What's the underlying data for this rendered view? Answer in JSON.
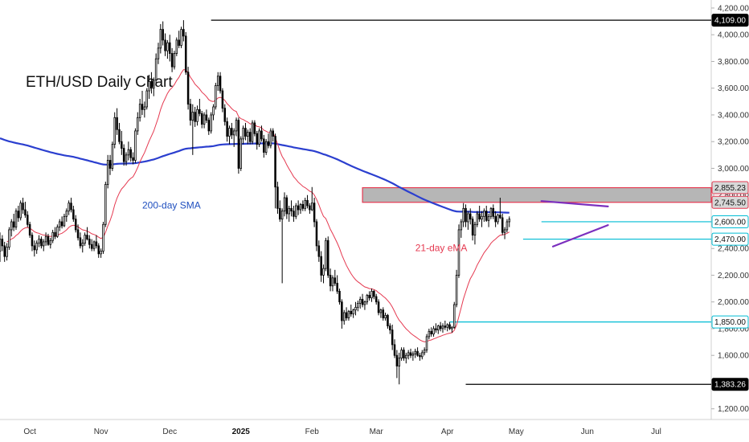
{
  "chart_data": {
    "type": "candlestick",
    "title": "ETH/USD Daily Chart",
    "y_axis": {
      "min": 1120,
      "max": 4260,
      "ticks": [
        "1,200.00",
        "1,400.00",
        "1,600.00",
        "1,800.00",
        "2,000.00",
        "2,200.00",
        "2,400.00",
        "2,600.00",
        "2,800.00",
        "3,000.00",
        "3,200.00",
        "3,400.00",
        "3,600.00",
        "3,800.00",
        "4,000.00",
        "4,200.00"
      ],
      "tick_values": [
        1200,
        1400,
        1600,
        1800,
        2000,
        2200,
        2400,
        2600,
        2800,
        3000,
        3200,
        3400,
        3600,
        3800,
        4000,
        4200
      ]
    },
    "x_axis": {
      "ticks": [
        {
          "label": "Oct",
          "day": 13
        },
        {
          "label": "Nov",
          "day": 44
        },
        {
          "label": "Dec",
          "day": 74
        },
        {
          "label": "2025",
          "day": 105,
          "bold": true
        },
        {
          "label": "Feb",
          "day": 136
        },
        {
          "label": "Mar",
          "day": 164
        },
        {
          "label": "Apr",
          "day": 195
        },
        {
          "label": "May",
          "day": 225
        },
        {
          "label": "Jun",
          "day": 256
        },
        {
          "label": "Jul",
          "day": 286
        }
      ],
      "day_range": [
        0,
        310
      ]
    },
    "price_badges": [
      {
        "label": "4,109.00",
        "value": 4109,
        "style": "dark"
      },
      {
        "label": "2,855.23",
        "value": 2855.23,
        "style": "red"
      },
      {
        "label": "2,745.50",
        "value": 2745.5,
        "style": "red"
      },
      {
        "label": "2,600.00",
        "value": 2600,
        "style": "light"
      },
      {
        "label": "2,470.00",
        "value": 2470,
        "style": "light"
      },
      {
        "label": "1,850.00",
        "value": 1850,
        "style": "light"
      },
      {
        "label": "1,383.26",
        "value": 1383.26,
        "style": "dark"
      }
    ],
    "levels": [
      {
        "value": 4109,
        "from_day": 92,
        "color": "#000000"
      },
      {
        "value": 1383.26,
        "from_day": 203,
        "color": "#000000"
      },
      {
        "value": 2600,
        "from_day": 236,
        "color": "#00bcd4"
      },
      {
        "value": 2470,
        "from_day": 228,
        "color": "#00bcd4"
      },
      {
        "value": 1850,
        "from_day": 196,
        "color": "#00bcd4"
      }
    ],
    "zone": {
      "low": 2745.5,
      "high": 2855.23,
      "from_day": 158
    },
    "trendlines": [
      {
        "from": [
          236,
          2755
        ],
        "to": [
          265,
          2715
        ],
        "color": "#7b2fbe"
      },
      {
        "from": [
          241,
          2415
        ],
        "to": [
          265,
          2575
        ],
        "color": "#7b2fbe"
      }
    ],
    "annotations": [
      {
        "text": "200-day SMA",
        "day": 62,
        "value": 2700,
        "color": "#1f4fbf"
      },
      {
        "text": "21-day eMA",
        "day": 181,
        "value": 2380,
        "color": "#e53950"
      }
    ],
    "candles": [
      [
        2380,
        2520,
        2300,
        2470
      ],
      [
        2470,
        2500,
        2380,
        2420
      ],
      [
        2420,
        2450,
        2300,
        2340
      ],
      [
        2340,
        2440,
        2310,
        2410
      ],
      [
        2410,
        2560,
        2390,
        2540
      ],
      [
        2540,
        2620,
        2490,
        2600
      ],
      [
        2600,
        2660,
        2530,
        2560
      ],
      [
        2560,
        2700,
        2540,
        2680
      ],
      [
        2680,
        2720,
        2600,
        2630
      ],
      [
        2630,
        2760,
        2610,
        2740
      ],
      [
        2740,
        2780,
        2660,
        2690
      ],
      [
        2690,
        2750,
        2630,
        2650
      ],
      [
        2650,
        2680,
        2560,
        2580
      ],
      [
        2580,
        2600,
        2480,
        2500
      ],
      [
        2500,
        2520,
        2380,
        2420
      ],
      [
        2420,
        2460,
        2340,
        2390
      ],
      [
        2390,
        2460,
        2360,
        2440
      ],
      [
        2440,
        2500,
        2410,
        2470
      ],
      [
        2470,
        2490,
        2400,
        2420
      ],
      [
        2420,
        2470,
        2380,
        2450
      ],
      [
        2450,
        2520,
        2420,
        2490
      ],
      [
        2490,
        2510,
        2420,
        2430
      ],
      [
        2430,
        2480,
        2400,
        2460
      ],
      [
        2460,
        2540,
        2440,
        2520
      ],
      [
        2520,
        2560,
        2470,
        2490
      ],
      [
        2490,
        2580,
        2480,
        2560
      ],
      [
        2560,
        2620,
        2530,
        2600
      ],
      [
        2600,
        2640,
        2550,
        2570
      ],
      [
        2570,
        2660,
        2560,
        2640
      ],
      [
        2640,
        2700,
        2600,
        2680
      ],
      [
        2680,
        2760,
        2650,
        2740
      ],
      [
        2740,
        2780,
        2670,
        2690
      ],
      [
        2690,
        2720,
        2600,
        2620
      ],
      [
        2620,
        2650,
        2520,
        2540
      ],
      [
        2540,
        2580,
        2460,
        2480
      ],
      [
        2480,
        2520,
        2400,
        2420
      ],
      [
        2420,
        2470,
        2370,
        2440
      ],
      [
        2440,
        2520,
        2420,
        2500
      ],
      [
        2500,
        2560,
        2460,
        2470
      ],
      [
        2470,
        2500,
        2400,
        2430
      ],
      [
        2430,
        2470,
        2380,
        2400
      ],
      [
        2400,
        2460,
        2380,
        2450
      ],
      [
        2450,
        2500,
        2400,
        2420
      ],
      [
        2420,
        2440,
        2330,
        2360
      ],
      [
        2360,
        2400,
        2330,
        2380
      ],
      [
        2380,
        2600,
        2360,
        2580
      ],
      [
        2580,
        2900,
        2560,
        2880
      ],
      [
        2880,
        3100,
        2850,
        3060
      ],
      [
        3060,
        3100,
        2950,
        3000
      ],
      [
        3000,
        3200,
        2980,
        3180
      ],
      [
        3180,
        3420,
        3150,
        3380
      ],
      [
        3380,
        3450,
        3250,
        3290
      ],
      [
        3290,
        3340,
        3180,
        3200
      ],
      [
        3200,
        3280,
        3100,
        3150
      ],
      [
        3150,
        3180,
        3020,
        3050
      ],
      [
        3050,
        3120,
        3020,
        3100
      ],
      [
        3100,
        3200,
        3060,
        3140
      ],
      [
        3140,
        3160,
        3050,
        3080
      ],
      [
        3080,
        3120,
        3030,
        3060
      ],
      [
        3060,
        3300,
        3040,
        3280
      ],
      [
        3280,
        3420,
        3250,
        3380
      ],
      [
        3380,
        3520,
        3350,
        3480
      ],
      [
        3480,
        3580,
        3400,
        3440
      ],
      [
        3440,
        3500,
        3380,
        3460
      ],
      [
        3460,
        3600,
        3440,
        3580
      ],
      [
        3580,
        3700,
        3520,
        3650
      ],
      [
        3650,
        3720,
        3560,
        3600
      ],
      [
        3600,
        3680,
        3540,
        3660
      ],
      [
        3660,
        3860,
        3640,
        3820
      ],
      [
        3820,
        3940,
        3780,
        3900
      ],
      [
        3900,
        4080,
        3860,
        4040
      ],
      [
        4040,
        4100,
        3920,
        3960
      ],
      [
        3960,
        4010,
        3840,
        3880
      ],
      [
        3880,
        3960,
        3820,
        3940
      ],
      [
        3940,
        4000,
        3800,
        3860
      ],
      [
        3860,
        3900,
        3720,
        3760
      ],
      [
        3760,
        3880,
        3740,
        3860
      ],
      [
        3860,
        3980,
        3840,
        3960
      ],
      [
        3960,
        4030,
        3900,
        3920
      ],
      [
        3920,
        4060,
        3900,
        4040
      ],
      [
        4040,
        4109,
        3950,
        3990
      ],
      [
        3990,
        4020,
        3700,
        3720
      ],
      [
        3720,
        3760,
        3440,
        3480
      ],
      [
        3480,
        3520,
        3320,
        3360
      ],
      [
        3360,
        3480,
        3100,
        3420
      ],
      [
        3420,
        3460,
        3310,
        3350
      ],
      [
        3350,
        3470,
        3320,
        3440
      ],
      [
        3440,
        3520,
        3390,
        3410
      ],
      [
        3410,
        3430,
        3300,
        3330
      ],
      [
        3330,
        3420,
        3300,
        3400
      ],
      [
        3400,
        3440,
        3340,
        3360
      ],
      [
        3360,
        3380,
        3250,
        3280
      ],
      [
        3280,
        3420,
        3260,
        3400
      ],
      [
        3400,
        3480,
        3360,
        3460
      ],
      [
        3460,
        3640,
        3440,
        3620
      ],
      [
        3620,
        3720,
        3580,
        3690
      ],
      [
        3690,
        3720,
        3560,
        3580
      ],
      [
        3580,
        3600,
        3420,
        3450
      ],
      [
        3450,
        3480,
        3320,
        3350
      ],
      [
        3350,
        3380,
        3200,
        3240
      ],
      [
        3240,
        3320,
        3180,
        3300
      ],
      [
        3300,
        3340,
        3220,
        3250
      ],
      [
        3250,
        3300,
        3160,
        3280
      ],
      [
        3280,
        3380,
        3240,
        3360
      ],
      [
        3360,
        3380,
        2960,
        3000
      ],
      [
        3000,
        3240,
        2980,
        3220
      ],
      [
        3220,
        3320,
        3180,
        3300
      ],
      [
        3300,
        3340,
        3210,
        3240
      ],
      [
        3240,
        3290,
        3180,
        3270
      ],
      [
        3270,
        3300,
        3180,
        3200
      ],
      [
        3200,
        3360,
        3180,
        3340
      ],
      [
        3340,
        3360,
        3240,
        3260
      ],
      [
        3260,
        3280,
        3140,
        3180
      ],
      [
        3180,
        3300,
        3160,
        3280
      ],
      [
        3280,
        3320,
        3200,
        3220
      ],
      [
        3220,
        3250,
        3080,
        3120
      ],
      [
        3120,
        3220,
        3100,
        3200
      ],
      [
        3200,
        3260,
        3150,
        3170
      ],
      [
        3170,
        3300,
        3150,
        3280
      ],
      [
        3280,
        3300,
        3200,
        3240
      ],
      [
        3240,
        3260,
        2700,
        2860
      ],
      [
        2860,
        2900,
        2660,
        2700
      ],
      [
        2700,
        2760,
        2600,
        2620
      ],
      [
        2620,
        2700,
        2140,
        2680
      ],
      [
        2680,
        2820,
        2640,
        2780
      ],
      [
        2780,
        2800,
        2620,
        2660
      ],
      [
        2660,
        2720,
        2600,
        2700
      ],
      [
        2700,
        2760,
        2640,
        2680
      ],
      [
        2680,
        2720,
        2600,
        2640
      ],
      [
        2640,
        2740,
        2620,
        2720
      ],
      [
        2720,
        2760,
        2650,
        2690
      ],
      [
        2690,
        2740,
        2660,
        2730
      ],
      [
        2730,
        2760,
        2680,
        2700
      ],
      [
        2700,
        2780,
        2680,
        2760
      ],
      [
        2760,
        2800,
        2700,
        2720
      ],
      [
        2720,
        2740,
        2660,
        2690
      ],
      [
        2690,
        2860,
        2680,
        2740
      ],
      [
        2740,
        2780,
        2560,
        2600
      ],
      [
        2600,
        2620,
        2380,
        2420
      ],
      [
        2420,
        2460,
        2300,
        2340
      ],
      [
        2340,
        2380,
        2150,
        2200
      ],
      [
        2200,
        2280,
        2140,
        2250
      ],
      [
        2250,
        2480,
        2230,
        2460
      ],
      [
        2460,
        2490,
        2180,
        2200
      ],
      [
        2200,
        2250,
        2080,
        2120
      ],
      [
        2120,
        2200,
        2080,
        2180
      ],
      [
        2180,
        2240,
        2120,
        2140
      ],
      [
        2140,
        2200,
        2060,
        2080
      ],
      [
        2080,
        2100,
        1980,
        2000
      ],
      [
        2000,
        2020,
        1800,
        1860
      ],
      [
        1860,
        1940,
        1830,
        1920
      ],
      [
        1920,
        1960,
        1860,
        1880
      ],
      [
        1880,
        1940,
        1860,
        1930
      ],
      [
        1930,
        1980,
        1890,
        1910
      ],
      [
        1910,
        1950,
        1880,
        1940
      ],
      [
        1940,
        2000,
        1900,
        1960
      ],
      [
        1960,
        2010,
        1930,
        1990
      ],
      [
        1990,
        2040,
        1950,
        2020
      ],
      [
        2020,
        2060,
        1960,
        1980
      ],
      [
        1980,
        2010,
        1940,
        2000
      ],
      [
        2000,
        2060,
        1980,
        2050
      ],
      [
        2050,
        2080,
        2010,
        2030
      ],
      [
        2030,
        2100,
        2000,
        2080
      ],
      [
        2080,
        2090,
        2020,
        2040
      ],
      [
        2040,
        2060,
        1980,
        2000
      ],
      [
        2000,
        2020,
        1900,
        1920
      ],
      [
        1920,
        1950,
        1880,
        1940
      ],
      [
        1940,
        1960,
        1860,
        1880
      ],
      [
        1880,
        1920,
        1860,
        1900
      ],
      [
        1900,
        1910,
        1800,
        1820
      ],
      [
        1820,
        1840,
        1760,
        1790
      ],
      [
        1790,
        1830,
        1640,
        1680
      ],
      [
        1680,
        1720,
        1580,
        1600
      ],
      [
        1600,
        1640,
        1430,
        1520
      ],
      [
        1520,
        1620,
        1383,
        1580
      ],
      [
        1580,
        1660,
        1560,
        1640
      ],
      [
        1640,
        1660,
        1560,
        1580
      ],
      [
        1580,
        1620,
        1540,
        1600
      ],
      [
        1600,
        1640,
        1570,
        1620
      ],
      [
        1620,
        1650,
        1580,
        1600
      ],
      [
        1600,
        1630,
        1560,
        1610
      ],
      [
        1610,
        1650,
        1580,
        1630
      ],
      [
        1630,
        1660,
        1590,
        1600
      ],
      [
        1600,
        1620,
        1560,
        1590
      ],
      [
        1590,
        1640,
        1570,
        1620
      ],
      [
        1620,
        1660,
        1600,
        1640
      ],
      [
        1640,
        1760,
        1620,
        1740
      ],
      [
        1740,
        1800,
        1720,
        1780
      ],
      [
        1780,
        1810,
        1740,
        1760
      ],
      [
        1760,
        1820,
        1740,
        1800
      ],
      [
        1800,
        1840,
        1770,
        1790
      ],
      [
        1790,
        1830,
        1760,
        1820
      ],
      [
        1820,
        1850,
        1780,
        1800
      ],
      [
        1800,
        1840,
        1770,
        1820
      ],
      [
        1820,
        1860,
        1790,
        1810
      ],
      [
        1810,
        1840,
        1780,
        1830
      ],
      [
        1830,
        1850,
        1790,
        1800
      ],
      [
        1800,
        1820,
        1770,
        1810
      ],
      [
        1810,
        2000,
        1800,
        1980
      ],
      [
        1980,
        2240,
        1960,
        2200
      ],
      [
        2200,
        2580,
        2180,
        2540
      ],
      [
        2540,
        2620,
        2480,
        2600
      ],
      [
        2600,
        2740,
        2560,
        2700
      ],
      [
        2700,
        2730,
        2560,
        2600
      ],
      [
        2600,
        2680,
        2540,
        2660
      ],
      [
        2660,
        2700,
        2580,
        2620
      ],
      [
        2620,
        2640,
        2460,
        2500
      ],
      [
        2500,
        2600,
        2430,
        2580
      ],
      [
        2580,
        2680,
        2560,
        2660
      ],
      [
        2660,
        2720,
        2600,
        2620
      ],
      [
        2620,
        2680,
        2560,
        2640
      ],
      [
        2640,
        2700,
        2600,
        2680
      ],
      [
        2680,
        2720,
        2600,
        2610
      ],
      [
        2610,
        2660,
        2560,
        2640
      ],
      [
        2640,
        2710,
        2620,
        2700
      ],
      [
        2700,
        2730,
        2620,
        2640
      ],
      [
        2640,
        2680,
        2560,
        2600
      ],
      [
        2600,
        2660,
        2580,
        2650
      ],
      [
        2650,
        2780,
        2620,
        2630
      ],
      [
        2630,
        2660,
        2500,
        2520
      ],
      [
        2520,
        2560,
        2470,
        2540
      ],
      [
        2540,
        2620,
        2520,
        2600
      ],
      [
        2600,
        2640,
        2560,
        2620
      ]
    ]
  }
}
